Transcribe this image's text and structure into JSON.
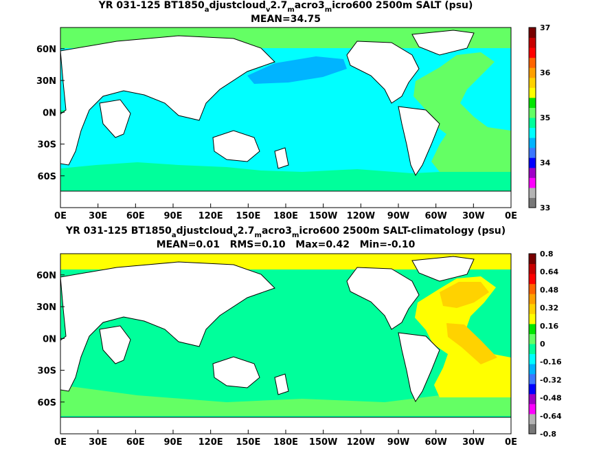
{
  "chart_data": [
    {
      "type": "heatmap",
      "title_parts": [
        "YR 031-125 BT1850",
        "a",
        "djustcloud",
        "v",
        "2.7",
        "m",
        "acro3",
        "m",
        "icro600 2500m SALT (psu)"
      ],
      "subtitle": "MEAN=34.75",
      "x_ticks": [
        "0E",
        "30E",
        "60E",
        "90E",
        "120E",
        "150E",
        "180E",
        "150W",
        "120W",
        "90W",
        "60W",
        "30W",
        "0E"
      ],
      "y_ticks": [
        "60N",
        "30N",
        "0N",
        "30S",
        "60S"
      ],
      "colorbar_ticks": [
        "37",
        "36",
        "35",
        "34",
        "33"
      ],
      "colorbar_colors": [
        "#787878",
        "#b4b4b4",
        "#ff00ff",
        "#a000c8",
        "#0000ff",
        "#3c78ff",
        "#00b4ff",
        "#00ffff",
        "#00ff9b",
        "#64ff64",
        "#00e600",
        "#ffff00",
        "#ffd200",
        "#ffa000",
        "#ff6400",
        "#ff0000",
        "#c80000",
        "#780000"
      ],
      "mean": 34.75
    },
    {
      "type": "heatmap",
      "title_parts": [
        "YR 031-125 BT1850",
        "a",
        "djustcloud",
        "v",
        "2.7",
        "m",
        "acro3",
        "m",
        "icro600 2500m SALT-climatology (psu)"
      ],
      "subtitle": "MEAN=0.01   RMS=0.10   Max=0.42   Min=-0.10",
      "x_ticks": [
        "0E",
        "30E",
        "60E",
        "90E",
        "120E",
        "150E",
        "180E",
        "150W",
        "120W",
        "90W",
        "60W",
        "30W",
        "0E"
      ],
      "y_ticks": [
        "60N",
        "30N",
        "0N",
        "30S",
        "60S"
      ],
      "colorbar_ticks": [
        "0.8",
        "0.64",
        "0.48",
        "0.32",
        "0.16",
        "0",
        "-0.16",
        "-0.32",
        "-0.48",
        "-0.64",
        "-0.8"
      ],
      "colorbar_colors": [
        "#787878",
        "#b4b4b4",
        "#ff00ff",
        "#a000c8",
        "#0000ff",
        "#3c78ff",
        "#00b4ff",
        "#00ffff",
        "#00ff9b",
        "#64ff64",
        "#00e600",
        "#ffff00",
        "#ffd200",
        "#ffa000",
        "#ff6400",
        "#ff0000",
        "#c80000",
        "#780000"
      ],
      "stats": {
        "mean": 0.01,
        "rms": 0.1,
        "max": 0.42,
        "min": -0.1
      }
    }
  ],
  "colors": {
    "ocean_top": "#00ffff",
    "atlantic_top": "#64ff64",
    "deep_top": "#00b4ff",
    "ocean_bottom": "#00ff9b",
    "atlantic_bottom": "#ffff00",
    "high_bottom": "#ffd200",
    "land": "#ffffff"
  }
}
